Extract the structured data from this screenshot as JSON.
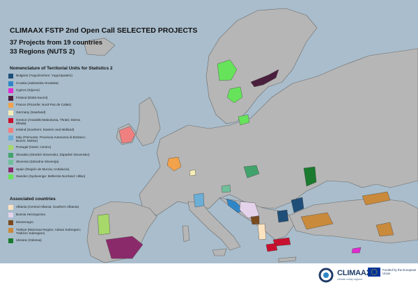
{
  "title": "CLIMAAX FSTP 2nd Open Call SELECTED PROJECTS",
  "subtitle_projects": "37 Projects from 19 countries",
  "subtitle_regions": "33 Regions (NUTS 2)",
  "legend_nuts_title": "Nomenclature of Territorial Units for Statistics 2",
  "legend_nuts": [
    {
      "label": "Bulgaria (Yugoiztochen; Yugozapaden)",
      "color": "#1f4e79"
    },
    {
      "label": "Croatia (Jadranska Hrvatska)",
      "color": "#2f86c7"
    },
    {
      "label": "Cyprus (Kýpros)",
      "color": "#e02bd0"
    },
    {
      "label": "Finland (Etelä-Suomi)",
      "color": "#4a1f3d"
    },
    {
      "label": "France (Picardie; Nord-Pas de Calais)",
      "color": "#f2a24a"
    },
    {
      "label": "Germany (Saarland)",
      "color": "#f6ecb7"
    },
    {
      "label": "Greece (Anatoliki Makedonia, Thraki; Sterea Ellada)",
      "color": "#c8102e"
    },
    {
      "label": "Ireland (Southern; Eastern and Midland)",
      "color": "#f08080"
    },
    {
      "label": "Italy (Piemonte; Provincia Autonoma di Bolzano-Bozen; Molise)",
      "color": "#6baed6"
    },
    {
      "label": "Portugal (Norte; Centro)",
      "color": "#a6d96a"
    },
    {
      "label": "Slovakia (Stredné Slovensko; Západné Slovensko)",
      "color": "#41a36b"
    },
    {
      "label": "Slovenia (Zahodna Slovenija)",
      "color": "#6fbf9a"
    },
    {
      "label": "Spain (Región de Murcia; Andalucía)",
      "color": "#8b2a6b"
    },
    {
      "label": "Sweden (Sydsverige; Mellersta Norrland; Håbo)",
      "color": "#66e35a"
    }
  ],
  "legend_assoc_title": "Associated countries",
  "legend_assoc": [
    {
      "label": "Albania (Central Albania; Southern Albania)",
      "color": "#fde2c0"
    },
    {
      "label": "Bosnia Herzegovina",
      "color": "#e3d2ea"
    },
    {
      "label": "Montenegro",
      "color": "#7a4a1f"
    },
    {
      "label": "Türkiye (Marmara Region; Adana Subregion; Trabzon Subregion)",
      "color": "#c98a3c"
    },
    {
      "label": "Ukraine (Odessa)",
      "color": "#1a7a2e"
    }
  ],
  "logo": {
    "name": "CLIMAAX",
    "tagline": "climate ready regions"
  },
  "eu_funding": "Funded by the European Union",
  "colors": {
    "sea": "#a9bdcc",
    "land": "#b9b9b9",
    "land_dark": "#8e8e8e",
    "border": "#5a5a5a"
  }
}
